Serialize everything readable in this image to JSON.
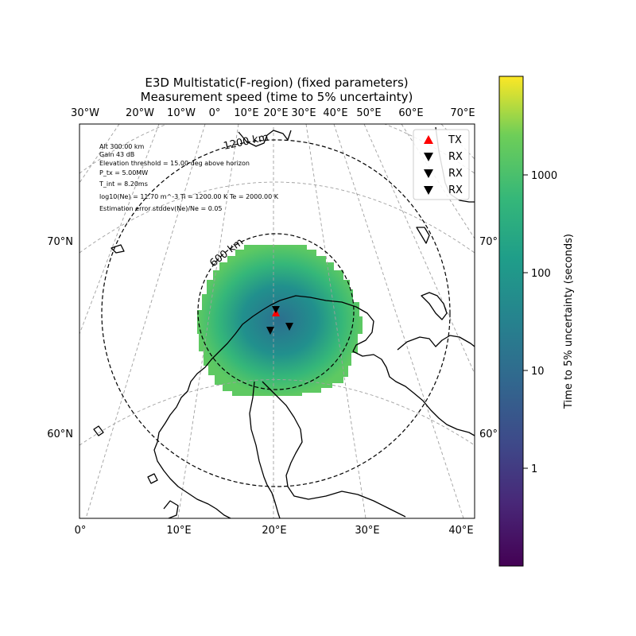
{
  "title": {
    "line1": "E3D Multistatic(F-region) (fixed parameters)",
    "line2": "Measurement speed (time to 5% uncertainty)"
  },
  "top_lon_labels": [
    "30°W",
    "20°W",
    "10°W",
    "0°",
    "10°E",
    "20°E",
    "30°E",
    "40°E",
    "50°E",
    "60°E",
    "70°E"
  ],
  "bottom_lon_labels": [
    "0°",
    "10°E",
    "20°E",
    "30°E",
    "40°E"
  ],
  "left_lat_labels": [
    "70°N",
    "60°N"
  ],
  "right_lat_labels": [
    "70°",
    "60°"
  ],
  "range_rings": [
    "1200 km",
    "600 km"
  ],
  "info_text": [
    "Alt 300.00 km",
    "Gain 43 dB",
    "Elevation threshold = 15.00 deg above horizon",
    "P_tx = 5.00MW",
    "T_int = 8.20ms",
    "log10(Ne) = 11.70 m^-3 Ti = 1200.00 K Te = 2000.00 K",
    "Estimation error stddev(Ne)/Ne = 0.05"
  ],
  "legend": [
    {
      "label": "TX",
      "marker": "triangle-up",
      "color": "#ff0000"
    },
    {
      "label": "RX",
      "marker": "triangle-down",
      "color": "#000000"
    },
    {
      "label": "RX",
      "marker": "triangle-down",
      "color": "#000000"
    },
    {
      "label": "RX",
      "marker": "triangle-down",
      "color": "#000000"
    }
  ],
  "colorbar": {
    "label": "Time to 5% uncertainty (seconds)",
    "ticks": [
      "1000",
      "100",
      "10",
      "1"
    ],
    "scale": "log",
    "colormap": "viridis"
  },
  "colors": {
    "coverage_outer": "#5ec962",
    "coverage_inner": "#2a788e",
    "tx": "#ff0000",
    "rx": "#000000"
  }
}
